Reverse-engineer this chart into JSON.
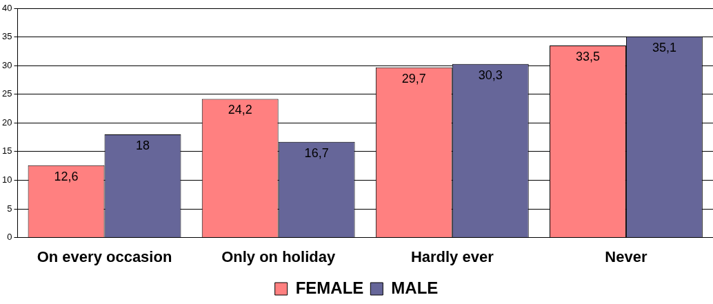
{
  "chart_data": {
    "type": "bar",
    "categories": [
      "On every occasion",
      "Only on holiday",
      "Hardly ever",
      "Never"
    ],
    "series": [
      {
        "name": "FEMALE",
        "color": "#ff8080",
        "values": [
          12.6,
          24.2,
          29.7,
          33.5
        ],
        "value_labels": [
          "12,6",
          "24,2",
          "29,7",
          "33,5"
        ]
      },
      {
        "name": "MALE",
        "color": "#666699",
        "values": [
          18,
          16.7,
          30.3,
          35.1
        ],
        "value_labels": [
          "18",
          "16,7",
          "30,3",
          "35,1"
        ]
      }
    ],
    "ylim": [
      0,
      40
    ],
    "yticks": [
      0,
      5,
      10,
      15,
      20,
      25,
      30,
      35,
      40
    ],
    "grid": "y",
    "legend": "bottom"
  }
}
